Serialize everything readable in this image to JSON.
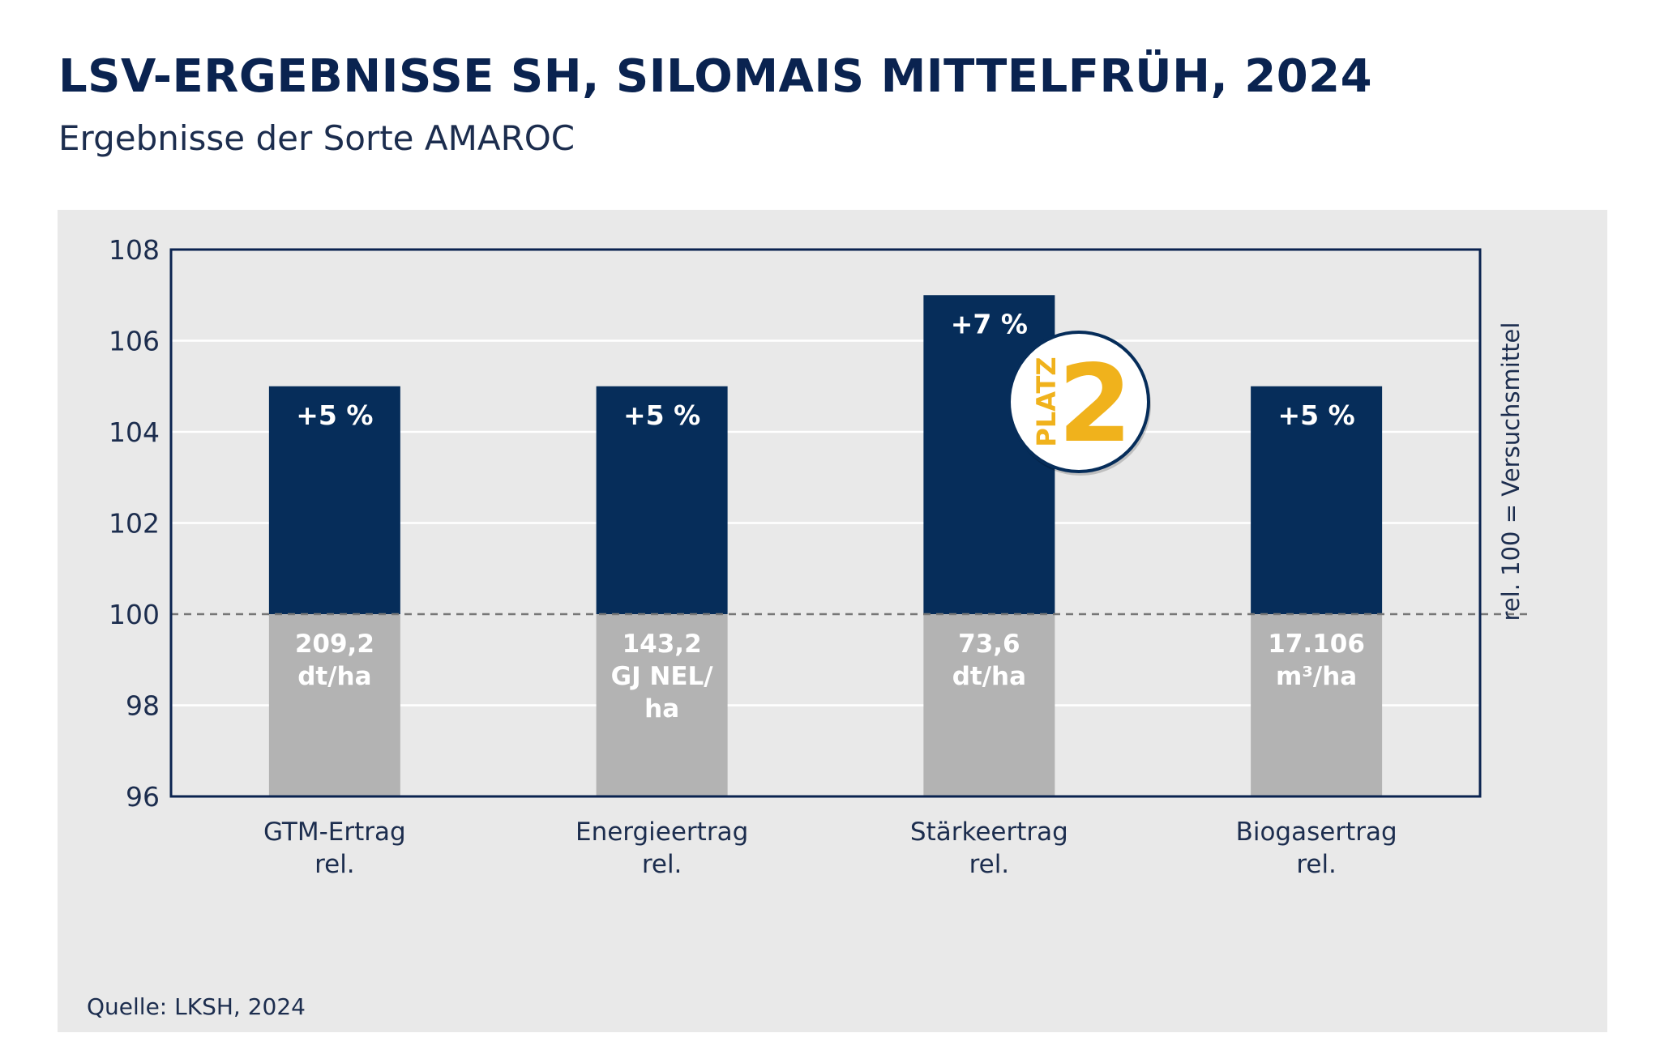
{
  "title": "LSV-ERGEBNISSE SH, SILOMAIS MITTELFRÜH, 2024",
  "subtitle": "Ergebnisse der Sorte AMAROC",
  "source": "Quelle: LKSH, 2024",
  "colors": {
    "title": "#0a2350",
    "bar_upper": "#062d5a",
    "bar_lower": "#b3b3b3",
    "panel": "#e9e9e9",
    "axis": "#0a2350",
    "badge_accent": "#f0b21c"
  },
  "badge": {
    "label": "PLATZ",
    "number": "2"
  },
  "chart_data": {
    "type": "bar",
    "categories": [
      [
        "GTM-Ertrag",
        "rel."
      ],
      [
        "Energieertrag",
        "rel."
      ],
      [
        "Stärkeertrag",
        "rel."
      ],
      [
        "Biogasertrag",
        "rel."
      ]
    ],
    "values": [
      105,
      105,
      107,
      105
    ],
    "baseline": 100,
    "top_labels": [
      "+5 %",
      "+5 %",
      "+7 %",
      "+5 %"
    ],
    "lower_labels": [
      [
        "209,2",
        "dt/ha"
      ],
      [
        "143,2",
        "GJ NEL/",
        "ha"
      ],
      [
        "73,6",
        "dt/ha"
      ],
      [
        "17.106",
        "m³/ha"
      ]
    ],
    "ylim": [
      96,
      108
    ],
    "yticks": [
      96,
      98,
      100,
      102,
      104,
      106,
      108
    ],
    "ylabel_right": "rel. 100 = Versuchsmittel",
    "grid": true,
    "reference_line": 100
  }
}
